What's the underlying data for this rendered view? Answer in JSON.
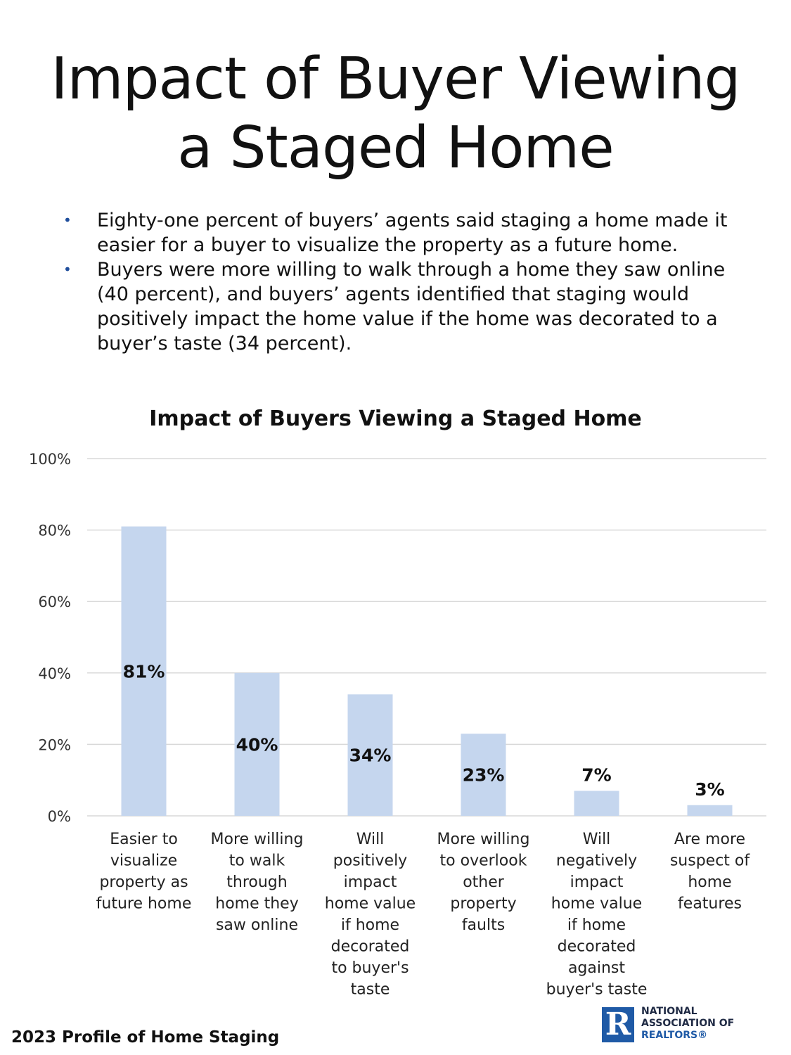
{
  "title": {
    "line1": "Impact of Buyer Viewing",
    "line2": "a Staged Home"
  },
  "bullets": [
    {
      "marker": "•",
      "text": "Eighty-one percent of buyers’ agents said staging a home made it easier for a buyer to visualize the property as a future home."
    },
    {
      "marker": "•",
      "text": "Buyers were more willing to walk through a home they saw online (40 percent), and buyers’ agents identified that staging would positively impact the home value if the home was decorated to a buyer’s taste (34 percent)."
    }
  ],
  "chart_data": {
    "type": "bar",
    "title": "Impact of Buyers Viewing a Staged Home",
    "xlabel": "",
    "ylabel": "",
    "ylim": [
      0,
      100
    ],
    "yticks": [
      0,
      20,
      40,
      60,
      80,
      100
    ],
    "ytick_labels": [
      "0%",
      "20%",
      "40%",
      "60%",
      "80%",
      "100%"
    ],
    "grid": true,
    "bar_color": "#c5d6ee",
    "categories": [
      "Easier to visualize property as future home",
      "More willing to walk through home they saw online",
      "Will positively impact home value if home decorated to buyer's taste",
      "More willing to overlook other property faults",
      "Will negatively impact home value if home decorated against buyer's taste",
      "Are more suspect of home features"
    ],
    "category_lines": [
      [
        "Easier to",
        "visualize",
        "property as",
        "future home"
      ],
      [
        "More willing",
        "to walk",
        "through",
        "home they",
        "saw online"
      ],
      [
        "Will",
        "positively",
        "impact",
        "home value",
        "if home",
        "decorated",
        "to buyer's",
        "taste"
      ],
      [
        "More willing",
        "to overlook",
        "other",
        "property",
        "faults"
      ],
      [
        "Will",
        "negatively",
        "impact",
        "home value",
        "if home",
        "decorated",
        "against",
        "buyer's taste"
      ],
      [
        "Are more",
        "suspect of",
        "home",
        "features"
      ]
    ],
    "values": [
      81,
      40,
      34,
      23,
      7,
      3
    ],
    "value_labels": [
      "81%",
      "40%",
      "34%",
      "23%",
      "7%",
      "3%"
    ]
  },
  "footer": "2023 Profile of Home Staging",
  "logo": {
    "mark": "R",
    "line1": "NATIONAL",
    "line2": "ASSOCIATION OF",
    "line3": "REALTORS®"
  }
}
